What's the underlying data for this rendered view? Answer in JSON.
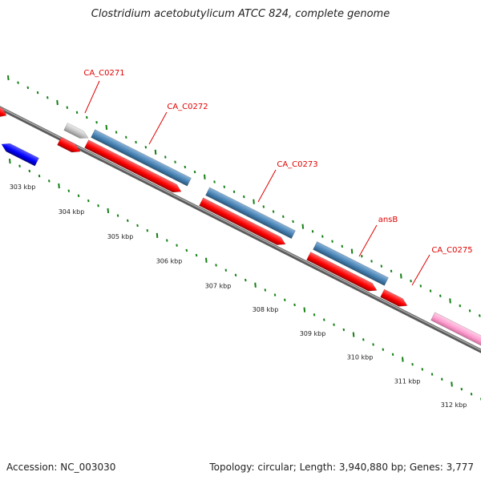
{
  "header": {
    "title": "Clostridium acetobutylicum ATCC 824, complete genome"
  },
  "footer": {
    "accession": "Accession: NC_003030",
    "stats": "Topology: circular; Length: 3,940,880 bp; Genes: 3,777"
  },
  "tick_labels": [
    "303 kbp",
    "304 kbp",
    "305 kbp",
    "306 kbp",
    "307 kbp",
    "308 kbp",
    "309 kbp",
    "310 kbp",
    "311 kbp",
    "312 kbp"
  ],
  "gene_labels": [
    "CA_C0271",
    "CA_C0272",
    "CA_C0273",
    "ansB",
    "CA_C0275"
  ],
  "colors": {
    "cds": "#ff0000",
    "gene": "#4682b4",
    "other_cds": "#0000ff",
    "misc": "#c0c0c0",
    "rna": "#ff9fd0",
    "backbone": "#808080",
    "ticks": "#138013",
    "label": "#e00000"
  }
}
